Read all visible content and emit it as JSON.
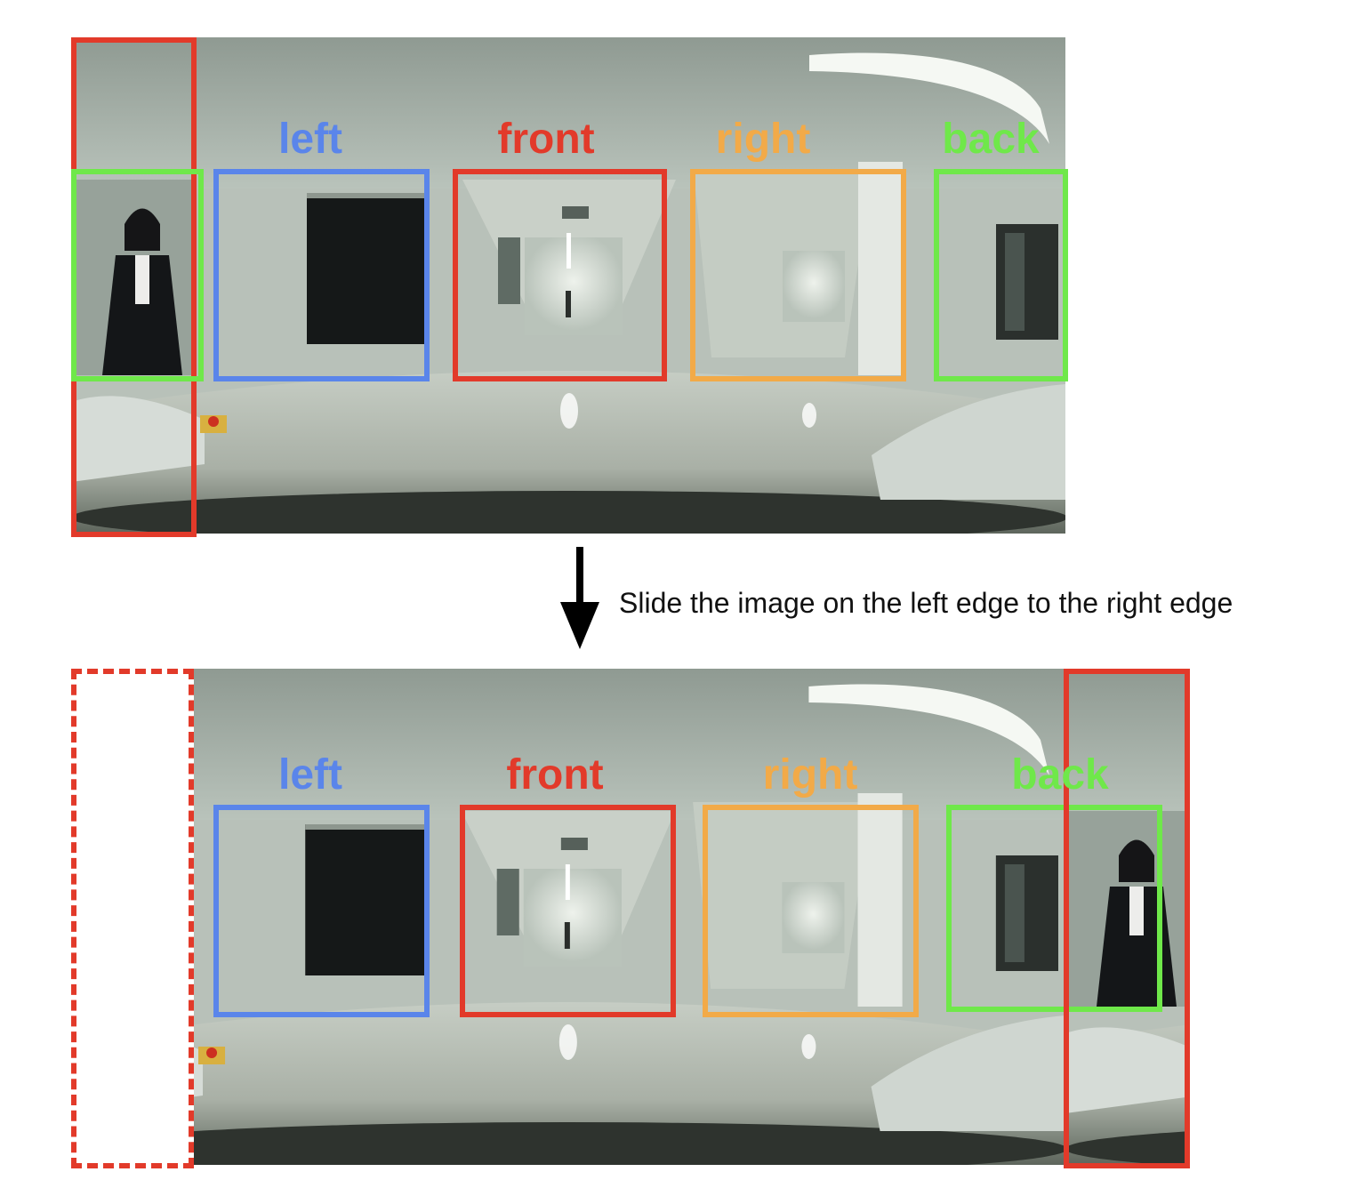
{
  "colors": {
    "left": "#5a85ea",
    "front": "#e23a2a",
    "right": "#f2aa48",
    "back": "#6fe84a",
    "seam": "#e23a2a",
    "arrow": "#000000"
  },
  "labels": {
    "left": "left",
    "front": "front",
    "right": "right",
    "back": "back"
  },
  "caption": "Slide the image on the left edge to the right edge",
  "icons": {
    "arrow": "arrow-down-icon"
  }
}
